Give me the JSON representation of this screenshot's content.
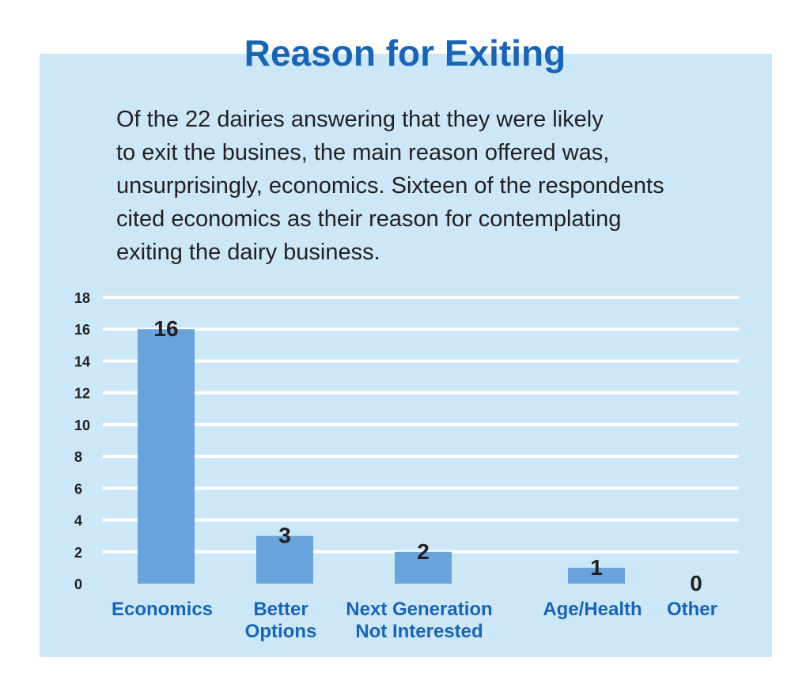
{
  "title": "Reason for Exiting",
  "description_lines": [
    "Of the 22 dairies answering that they were likely",
    "to exit the busines, the main reason offered was,",
    "unsurprisingly, economics. Sixteen of the respondents",
    "cited economics as their reason for contemplating",
    "exiting the dairy business."
  ],
  "colors": {
    "panel": "#cbe7f8",
    "bar": "#68a3db",
    "title": "#1a64b6",
    "grid": "#ffffff"
  },
  "chart_data": {
    "type": "bar",
    "categories": [
      [
        "Economics"
      ],
      [
        "Better",
        "Options"
      ],
      [
        "Next Generation",
        "Not Interested"
      ],
      [
        "Age/Health"
      ],
      [
        "Other"
      ]
    ],
    "values": [
      16,
      3,
      2,
      1,
      0
    ],
    "ylim": [
      0,
      18
    ],
    "yticks": [
      0,
      2,
      4,
      6,
      8,
      10,
      12,
      14,
      16,
      18
    ],
    "grid": true,
    "data_labels": true
  }
}
